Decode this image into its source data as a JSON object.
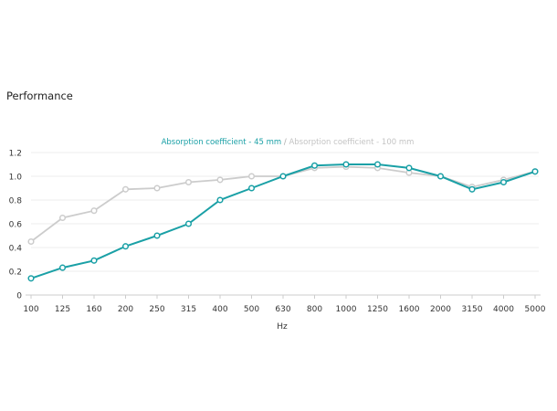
{
  "section": {
    "title": "Performance"
  },
  "chart_data": {
    "type": "line",
    "categories": [
      "100",
      "125",
      "160",
      "200",
      "250",
      "315",
      "400",
      "500",
      "630",
      "800",
      "1000",
      "1250",
      "1600",
      "2000",
      "3150",
      "4000",
      "5000"
    ],
    "series": [
      {
        "name": "Absorption coefficient - 45 mm",
        "color": "#1aa0a6",
        "values": [
          0.14,
          0.23,
          0.29,
          0.41,
          0.5,
          0.6,
          0.8,
          0.9,
          1.0,
          1.09,
          1.1,
          1.1,
          1.07,
          1.0,
          0.89,
          0.95,
          1.04
        ]
      },
      {
        "name": "Absorption coefficient - 100 mm",
        "color": "#cccccc",
        "values": [
          0.45,
          0.65,
          0.71,
          0.89,
          0.9,
          0.95,
          0.97,
          1.0,
          1.0,
          1.07,
          1.08,
          1.07,
          1.03,
          1.0,
          0.91,
          0.97,
          1.04
        ]
      }
    ],
    "legend_separator": "/",
    "ylim": [
      0,
      1.2
    ],
    "yticks": [
      "0",
      "0.2",
      "0.4",
      "0.6",
      "0.8",
      "1.0",
      "1.2"
    ],
    "xlabel": "Hz",
    "ylabel": "",
    "grid": true,
    "legend_position": "top-center"
  }
}
